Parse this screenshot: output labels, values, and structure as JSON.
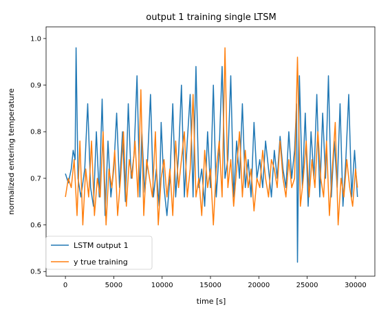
{
  "chart_data": {
    "type": "line",
    "title": "output 1 training single LTSM",
    "xlabel": "time [s]",
    "ylabel": "normalized entering temperature",
    "xlim": [
      -2000,
      32000
    ],
    "ylim": [
      0.49,
      1.025
    ],
    "xticks": [
      0,
      5000,
      10000,
      15000,
      20000,
      25000,
      30000
    ],
    "yticks": [
      0.5,
      0.6,
      0.7,
      0.8,
      0.9,
      1.0
    ],
    "xtick_labels": [
      "0",
      "5000",
      "10000",
      "15000",
      "20000",
      "25000",
      "30000"
    ],
    "ytick_labels": [
      "0.5",
      "0.6",
      "0.7",
      "0.8",
      "0.9",
      "1.0"
    ],
    "grid": false,
    "legend_position": "lower-left",
    "series": [
      {
        "name": "LSTM output 1",
        "color": "#1f77b4",
        "x": [
          0,
          300,
          600,
          800,
          1000,
          1100,
          1300,
          1600,
          2000,
          2300,
          2600,
          2900,
          3200,
          3500,
          3800,
          4100,
          4400,
          4700,
          5000,
          5300,
          5600,
          5900,
          6200,
          6500,
          6800,
          7100,
          7400,
          7700,
          7900,
          8200,
          8500,
          8800,
          9100,
          9400,
          9700,
          9900,
          10200,
          10500,
          10800,
          11100,
          11400,
          11700,
          12000,
          12300,
          12600,
          12900,
          13200,
          13500,
          13800,
          14100,
          14400,
          14700,
          15000,
          15300,
          15600,
          15900,
          16200,
          16500,
          16800,
          17100,
          17400,
          17700,
          18000,
          18300,
          18600,
          18900,
          19200,
          19500,
          19800,
          20100,
          20400,
          20700,
          21000,
          21300,
          21600,
          21900,
          22200,
          22500,
          22800,
          23100,
          23400,
          23700,
          23900,
          24000,
          24200,
          24500,
          24800,
          25100,
          25400,
          25700,
          26000,
          26300,
          26600,
          26900,
          27200,
          27500,
          27800,
          28100,
          28400,
          28700,
          29000,
          29300,
          29600,
          29900,
          30200
        ],
        "y": [
          0.71,
          0.69,
          0.72,
          0.76,
          0.74,
          0.98,
          0.7,
          0.66,
          0.72,
          0.86,
          0.68,
          0.64,
          0.8,
          0.66,
          0.87,
          0.62,
          0.78,
          0.66,
          0.72,
          0.84,
          0.68,
          0.8,
          0.65,
          0.86,
          0.7,
          0.75,
          0.92,
          0.66,
          0.8,
          0.67,
          0.74,
          0.88,
          0.66,
          0.72,
          0.64,
          0.82,
          0.68,
          0.62,
          0.7,
          0.86,
          0.66,
          0.75,
          0.9,
          0.66,
          0.78,
          0.88,
          0.66,
          0.94,
          0.68,
          0.72,
          0.64,
          0.8,
          0.68,
          0.9,
          0.66,
          0.76,
          0.94,
          0.7,
          0.74,
          0.92,
          0.66,
          0.78,
          0.7,
          0.86,
          0.68,
          0.74,
          0.66,
          0.82,
          0.7,
          0.74,
          0.68,
          0.78,
          0.72,
          0.66,
          0.76,
          0.7,
          0.79,
          0.72,
          0.68,
          0.8,
          0.7,
          0.76,
          0.86,
          0.52,
          0.92,
          0.68,
          0.84,
          0.64,
          0.8,
          0.7,
          0.88,
          0.66,
          0.84,
          0.7,
          0.92,
          0.66,
          0.78,
          0.68,
          0.86,
          0.64,
          0.74,
          0.88,
          0.66,
          0.76,
          0.66
        ]
      },
      {
        "name": "y true training",
        "color": "#ff7f0e",
        "x": [
          0,
          300,
          600,
          900,
          1200,
          1500,
          1800,
          2100,
          2400,
          2700,
          3000,
          3300,
          3600,
          3900,
          4200,
          4500,
          4800,
          5100,
          5400,
          5700,
          6000,
          6300,
          6600,
          6900,
          7200,
          7500,
          7800,
          8100,
          8400,
          8700,
          9000,
          9300,
          9600,
          9900,
          10200,
          10500,
          10800,
          11100,
          11400,
          11700,
          12000,
          12300,
          12600,
          12900,
          13200,
          13500,
          13800,
          14100,
          14400,
          14700,
          15000,
          15300,
          15600,
          15900,
          16200,
          16500,
          16800,
          17100,
          17400,
          17700,
          18000,
          18300,
          18600,
          18900,
          19200,
          19500,
          19800,
          20100,
          20400,
          20700,
          21000,
          21300,
          21600,
          21900,
          22200,
          22500,
          22800,
          23100,
          23400,
          23700,
          24000,
          24300,
          24600,
          24900,
          25200,
          25500,
          25800,
          26100,
          26400,
          26700,
          27000,
          27300,
          27600,
          27900,
          28200,
          28500,
          28800,
          29100,
          29400,
          29700,
          30000,
          30200
        ],
        "y": [
          0.66,
          0.7,
          0.68,
          0.74,
          0.62,
          0.78,
          0.6,
          0.72,
          0.66,
          0.78,
          0.62,
          0.7,
          0.66,
          0.8,
          0.6,
          0.72,
          0.68,
          0.76,
          0.62,
          0.7,
          0.8,
          0.64,
          0.74,
          0.7,
          0.78,
          0.66,
          0.89,
          0.62,
          0.74,
          0.7,
          0.66,
          0.8,
          0.6,
          0.7,
          0.74,
          0.66,
          0.72,
          0.62,
          0.78,
          0.68,
          0.74,
          0.8,
          0.66,
          0.72,
          0.88,
          0.66,
          0.7,
          0.62,
          0.76,
          0.68,
          0.72,
          0.6,
          0.72,
          0.78,
          0.66,
          0.98,
          0.68,
          0.74,
          0.64,
          0.72,
          0.8,
          0.66,
          0.76,
          0.68,
          0.72,
          0.63,
          0.7,
          0.68,
          0.76,
          0.7,
          0.66,
          0.74,
          0.72,
          0.68,
          0.78,
          0.7,
          0.66,
          0.74,
          0.68,
          0.7,
          0.96,
          0.64,
          0.7,
          0.78,
          0.66,
          0.74,
          0.68,
          0.8,
          0.7,
          0.66,
          0.78,
          0.62,
          0.72,
          0.82,
          0.6,
          0.7,
          0.66,
          0.74,
          0.68,
          0.64,
          0.72,
          0.68
        ]
      }
    ]
  }
}
